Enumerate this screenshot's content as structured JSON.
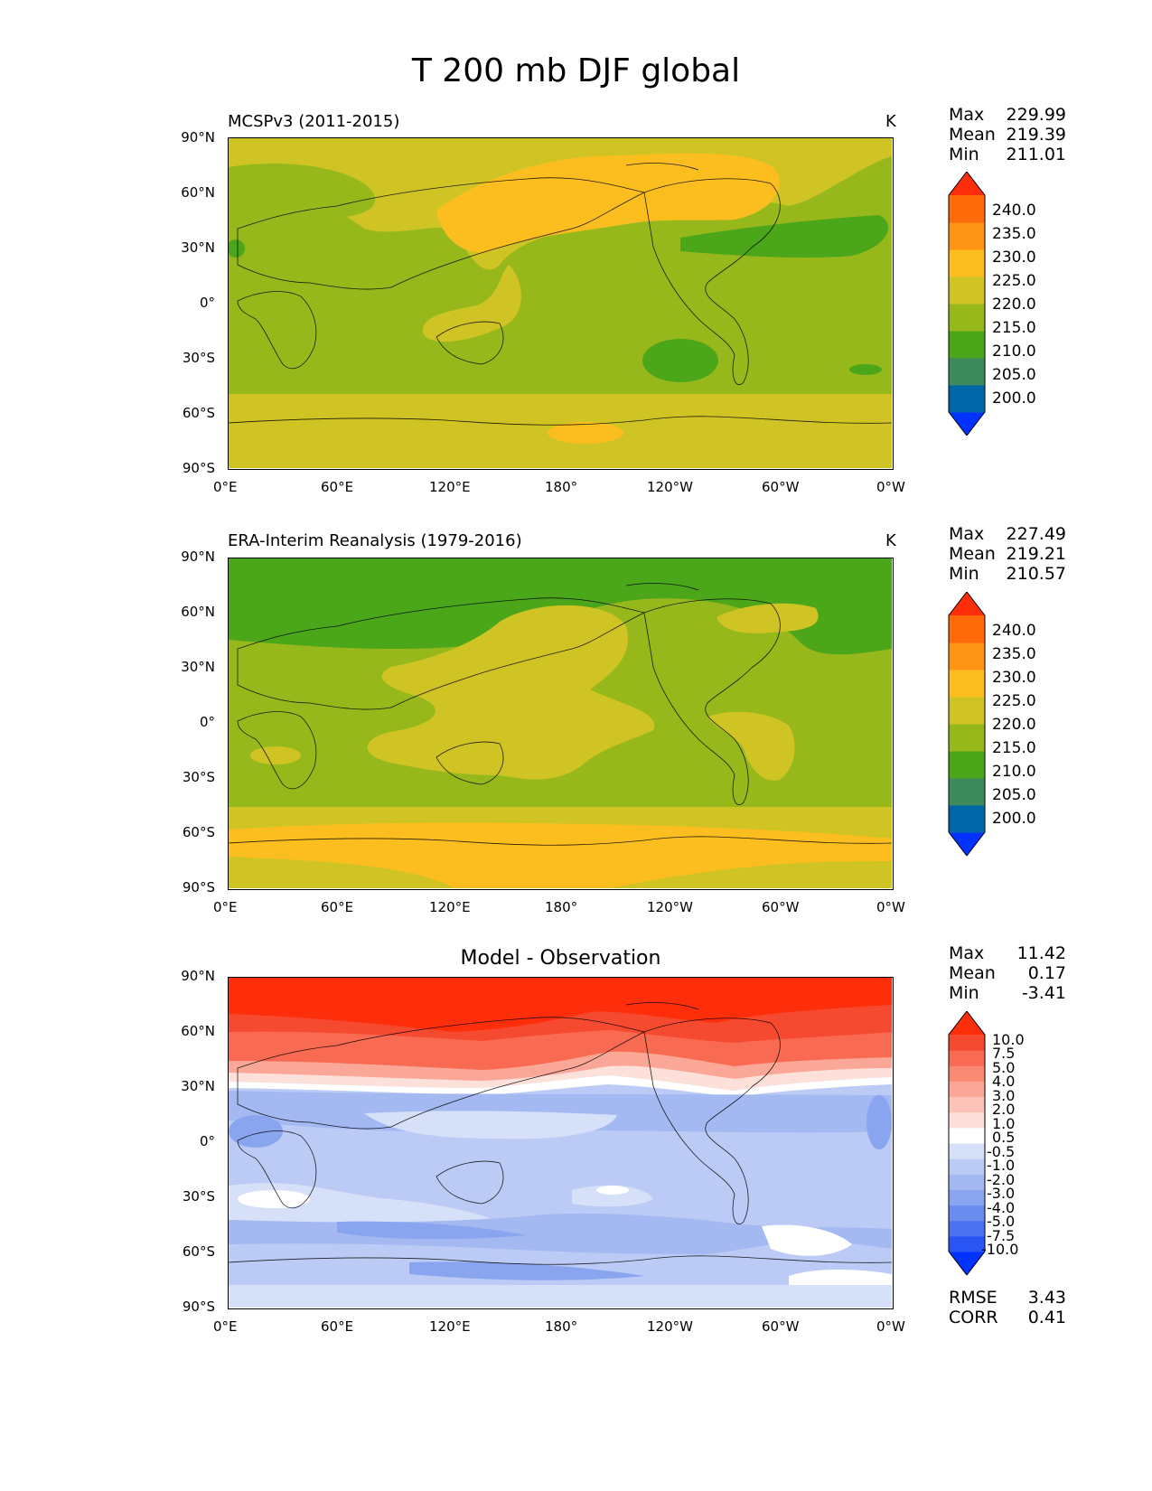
{
  "title": "T 200 mb DJF global",
  "x_ticks": [
    "0°E",
    "60°E",
    "120°E",
    "180°",
    "120°W",
    "60°W",
    "0°W"
  ],
  "y_ticks": [
    "90°N",
    "60°N",
    "30°N",
    "0°",
    "30°S",
    "60°S",
    "90°S"
  ],
  "panels": [
    {
      "subtitle": "MCSPv3 (2011-2015)",
      "units": "K",
      "stats": [
        {
          "label": "Max",
          "value": "229.99"
        },
        {
          "label": "Mean",
          "value": "219.39"
        },
        {
          "label": "Min",
          "value": "211.01"
        }
      ]
    },
    {
      "subtitle": "ERA-Interim Reanalysis (1979-2016)",
      "units": "K",
      "stats": [
        {
          "label": "Max",
          "value": "227.49"
        },
        {
          "label": "Mean",
          "value": "219.21"
        },
        {
          "label": "Min",
          "value": "210.57"
        }
      ]
    },
    {
      "subtitle": "Model - Observation",
      "units": "",
      "stats": [
        {
          "label": "Max",
          "value": "11.42"
        },
        {
          "label": "Mean",
          "value": "0.17"
        },
        {
          "label": "Min",
          "value": "-3.41"
        }
      ],
      "metrics": [
        {
          "label": "RMSE",
          "value": "3.43"
        },
        {
          "label": "CORR",
          "value": "0.41"
        }
      ]
    }
  ],
  "colorbar_abs": {
    "labels": [
      "240.0",
      "235.0",
      "230.0",
      "225.0",
      "220.0",
      "215.0",
      "210.0",
      "205.0",
      "200.0"
    ],
    "colors": [
      "#0033ff",
      "#0066aa",
      "#3d8a5e",
      "#4ba619",
      "#97b81b",
      "#cfc424",
      "#fcbe1f",
      "#ff9313",
      "#ff6a0b",
      "#ff2e0a"
    ]
  },
  "colorbar_diff": {
    "labels": [
      "10.0",
      "7.5",
      "5.0",
      "4.0",
      "3.0",
      "2.0",
      "1.0",
      "0.5",
      "-0.5",
      "-1.0",
      "-2.0",
      "-3.0",
      "-4.0",
      "-5.0",
      "-7.5",
      "-10.0"
    ],
    "colors": [
      "#0033ff",
      "#2a55f5",
      "#4a72f0",
      "#6a8cef",
      "#8aa5f0",
      "#a4b8f2",
      "#bccbf5",
      "#d7e0f9",
      "#ffffff",
      "#fde0da",
      "#fcc4b8",
      "#fba797",
      "#fa8a74",
      "#f86b52",
      "#f64a30",
      "#ff2e0a"
    ]
  },
  "chart_data": [
    {
      "type": "heatmap",
      "title": "MCSPv3 (2011-2015)",
      "units": "K",
      "xlim": [
        0,
        360
      ],
      "ylim": [
        -90,
        90
      ],
      "contour_levels": [
        200.0,
        205.0,
        210.0,
        215.0,
        220.0,
        225.0,
        230.0,
        235.0,
        240.0
      ],
      "max": 229.99,
      "mean": 219.39,
      "min": 211.01
    },
    {
      "type": "heatmap",
      "title": "ERA-Interim Reanalysis (1979-2016)",
      "units": "K",
      "xlim": [
        0,
        360
      ],
      "ylim": [
        -90,
        90
      ],
      "contour_levels": [
        200.0,
        205.0,
        210.0,
        215.0,
        220.0,
        225.0,
        230.0,
        235.0,
        240.0
      ],
      "max": 227.49,
      "mean": 219.21,
      "min": 210.57
    },
    {
      "type": "heatmap",
      "title": "Model - Observation",
      "xlim": [
        0,
        360
      ],
      "ylim": [
        -90,
        90
      ],
      "contour_levels": [
        -10.0,
        -7.5,
        -5.0,
        -4.0,
        -3.0,
        -2.0,
        -1.0,
        -0.5,
        0.5,
        1.0,
        2.0,
        3.0,
        4.0,
        5.0,
        7.5,
        10.0
      ],
      "max": 11.42,
      "mean": 0.17,
      "min": -3.41,
      "rmse": 3.43,
      "corr": 0.41
    }
  ]
}
